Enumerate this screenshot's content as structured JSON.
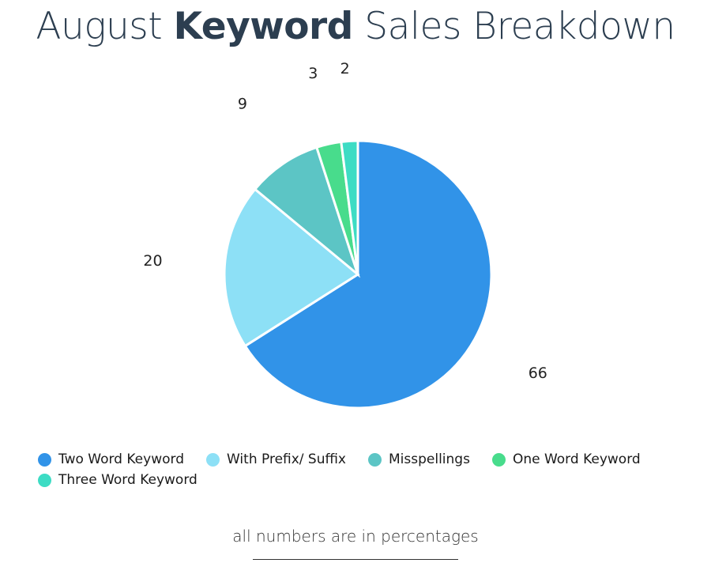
{
  "header": {
    "title_pre": "August ",
    "title_bold": "Keyword",
    "title_post": " Sales Breakdown"
  },
  "chart_data": {
    "type": "pie",
    "categories": [
      "Two Word Keyword",
      "With Prefix/ Suffix",
      "Misspellings",
      "One Word Keyword",
      "Three Word Keyword"
    ],
    "values": [
      66,
      20,
      9,
      3,
      2
    ],
    "data_labels": [
      "66",
      "20",
      "9",
      "3",
      "2"
    ],
    "colors": [
      "#3193e8",
      "#8de0f6",
      "#5cc5c5",
      "#48dc8c",
      "#3ddcc4"
    ],
    "legend_position": "bottom"
  },
  "footer": {
    "note": "all numbers are in percentages"
  }
}
